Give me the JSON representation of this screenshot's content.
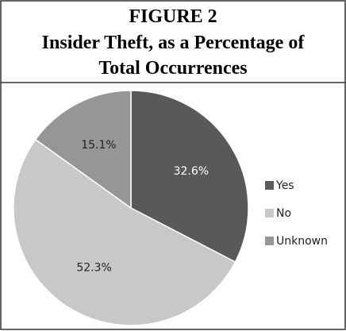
{
  "chart_data": {
    "type": "pie",
    "title": "FIGURE 2",
    "subtitle": [
      "Insider Theft, as a Percentage of",
      "Total Occurrences"
    ],
    "categories": [
      "Yes",
      "No",
      "Unknown"
    ],
    "values": [
      32.6,
      52.3,
      15.1
    ],
    "value_labels": [
      "32.6%",
      "52.3%",
      "15.1%"
    ],
    "colors": [
      "#595959",
      "#c8c8c8",
      "#969696"
    ],
    "legend": "right"
  }
}
